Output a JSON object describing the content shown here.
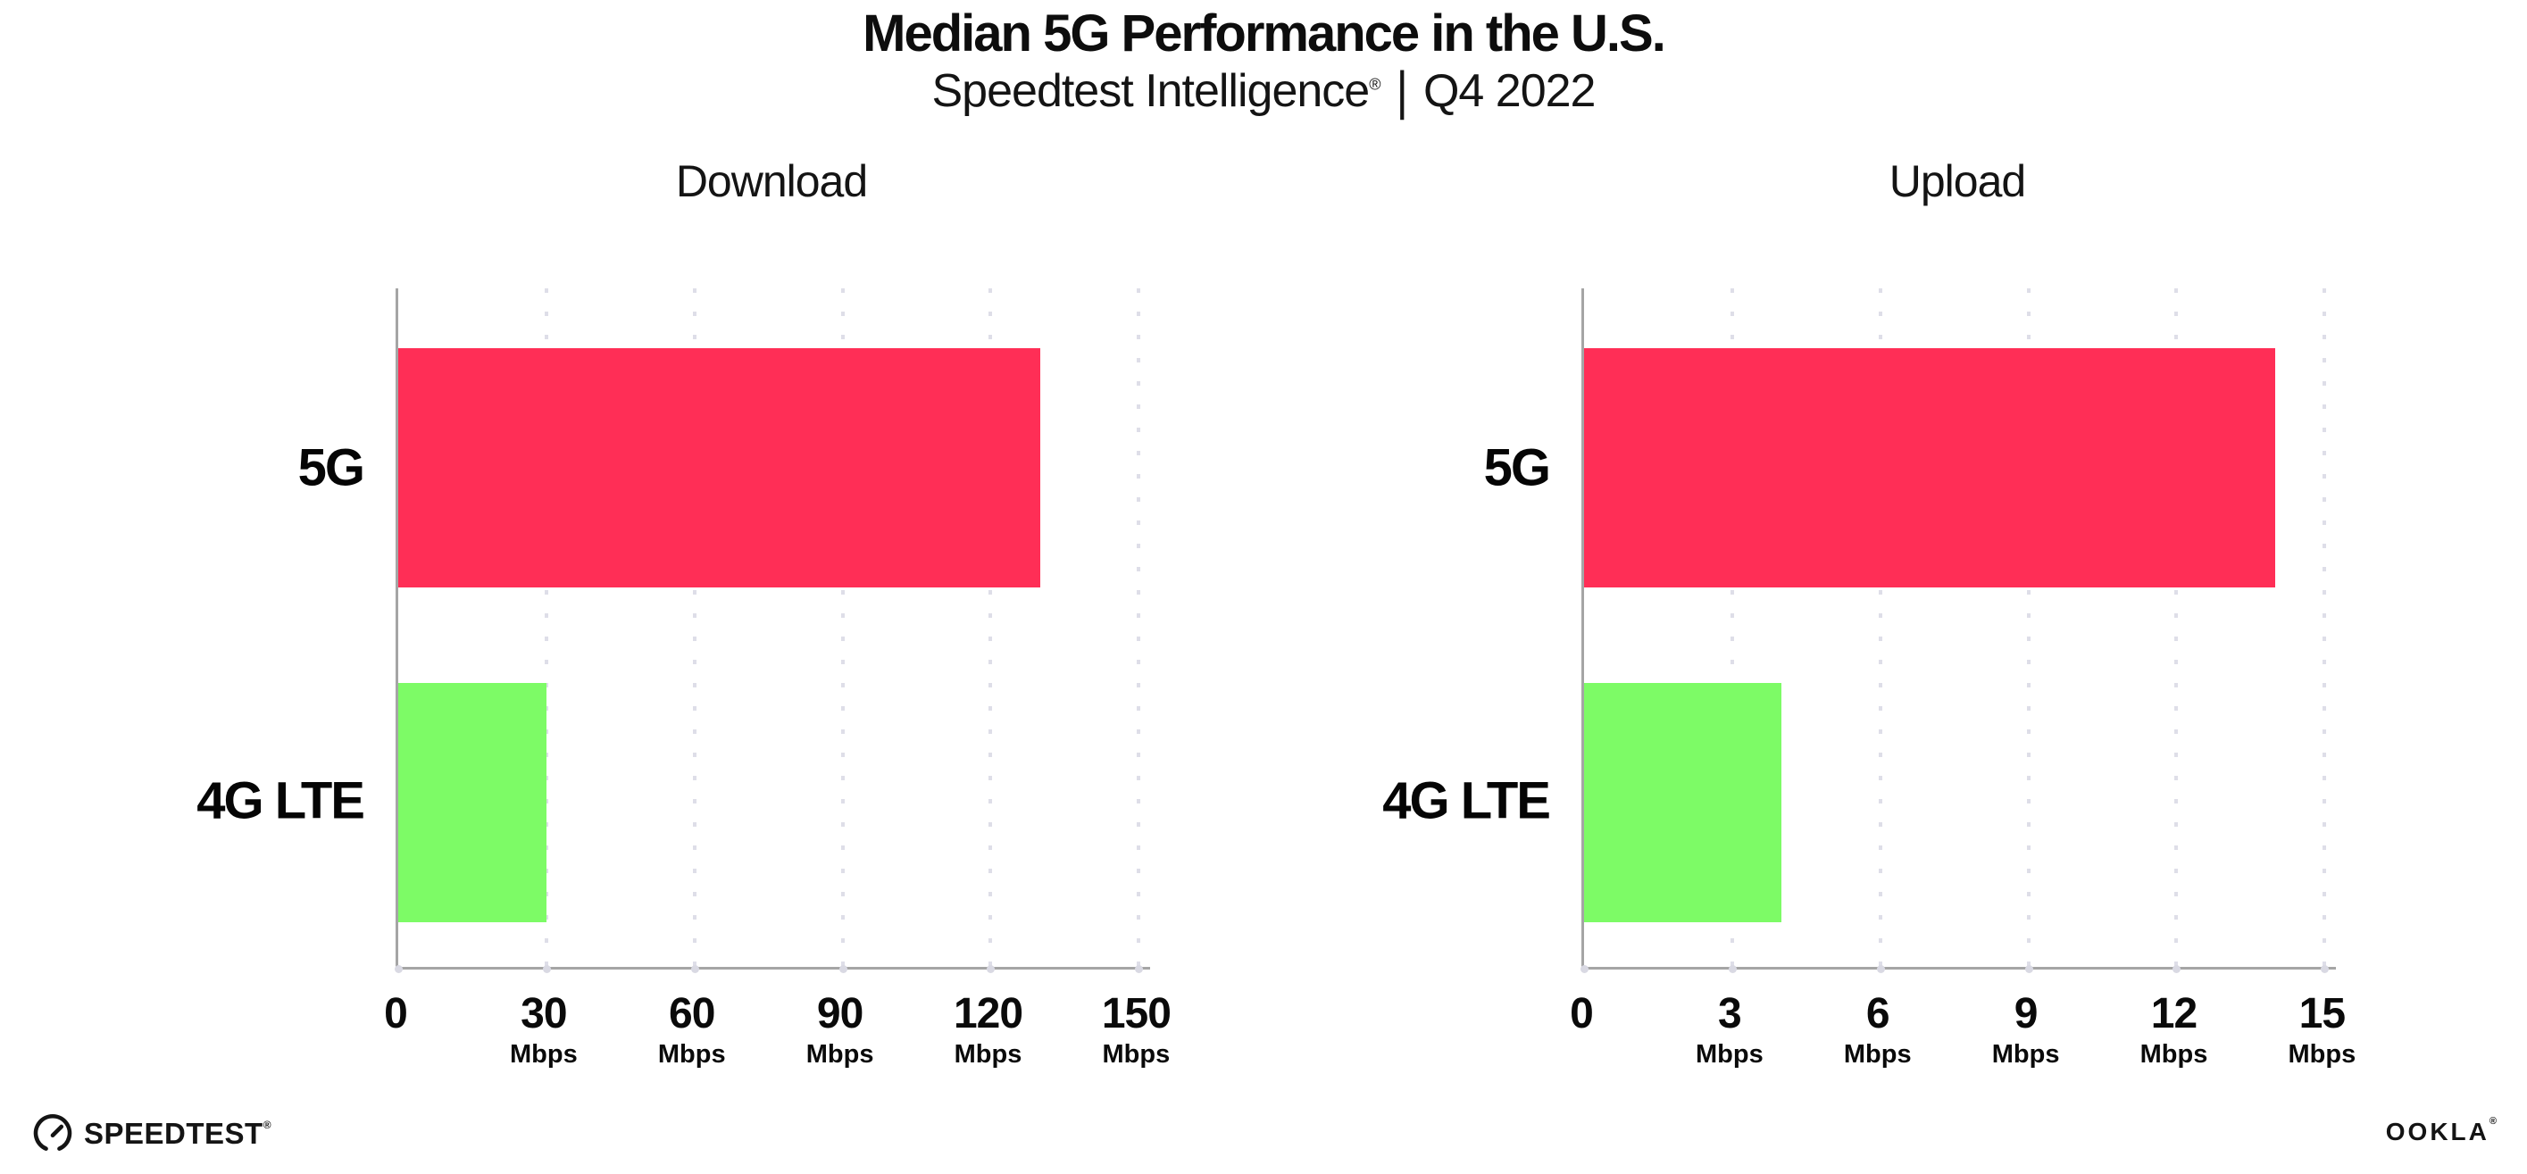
{
  "header": {
    "title": "Median 5G Performance in the U.S.",
    "subtitle_brand": "Speedtest Intelligence",
    "subtitle_reg": "®",
    "subtitle_sep": "|",
    "subtitle_period": "Q4 2022"
  },
  "chart_data": [
    {
      "type": "bar",
      "orientation": "horizontal",
      "title": "Download",
      "categories": [
        "5G",
        "4G LTE"
      ],
      "values": [
        130,
        30
      ],
      "unit": "Mbps",
      "xlim": [
        0,
        150
      ],
      "xticks": [
        0,
        30,
        60,
        90,
        120,
        150
      ],
      "tick_unit_label": "Mbps",
      "bar_colors": [
        "#FF2E56",
        "#7DFB66"
      ],
      "grid": "dotted-vertical",
      "legend": "none"
    },
    {
      "type": "bar",
      "orientation": "horizontal",
      "title": "Upload",
      "categories": [
        "5G",
        "4G LTE"
      ],
      "values": [
        14,
        4
      ],
      "unit": "Mbps",
      "xlim": [
        0,
        15
      ],
      "xticks": [
        0,
        3,
        6,
        9,
        12,
        15
      ],
      "tick_unit_label": "Mbps",
      "bar_colors": [
        "#FF2E56",
        "#7DFB66"
      ],
      "grid": "dotted-vertical",
      "legend": "none"
    }
  ],
  "footer": {
    "speedtest_logo_text": "SPEEDTEST",
    "speedtest_reg": "®",
    "ookla_logo_text": "OOKLA",
    "ookla_reg": "®"
  },
  "colors": {
    "bar_5g": "#FF2E56",
    "bar_4g_lte": "#7DFB66",
    "axis": "#A5A5A5",
    "gridline": "#DEDEE8",
    "text": "#111111",
    "background": "#FFFFFF"
  }
}
